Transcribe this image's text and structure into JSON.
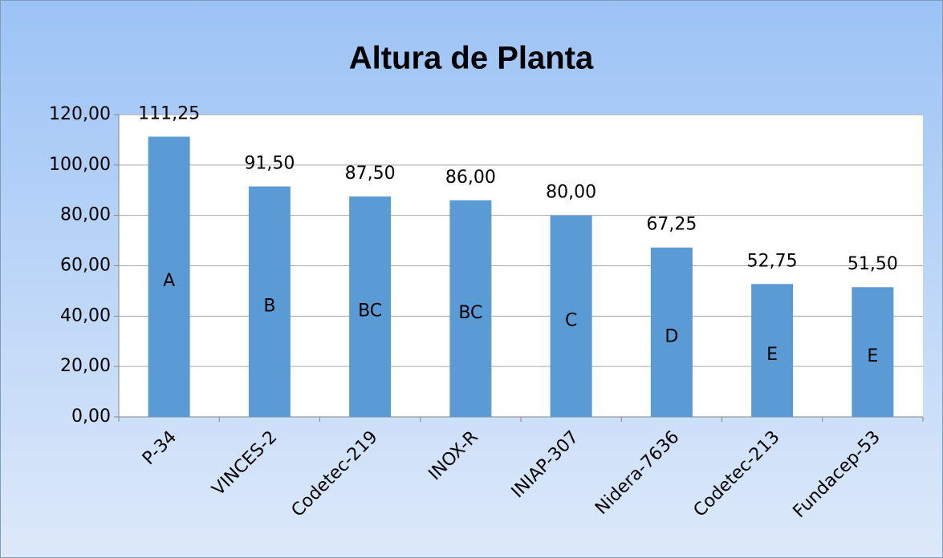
{
  "chart_data": {
    "type": "bar",
    "title": "Altura de Planta",
    "categories": [
      "P-34",
      "VINCES-2",
      "Codetec-219",
      "INOX-R",
      "INIAP-307",
      "Nidera-7636",
      "Codetec-213",
      "Fundacep-53"
    ],
    "values": [
      111.25,
      91.5,
      87.5,
      86,
      80,
      67.25,
      52.75,
      51.5
    ],
    "value_labels": [
      "111,25",
      "91,50",
      "87,50",
      "86,00",
      "80,00",
      "67,25",
      "52,75",
      "51,50"
    ],
    "annotations": [
      "A",
      "B",
      "BC",
      "BC",
      "C",
      "D",
      "E",
      "E"
    ],
    "color": "#5b9bd5",
    "ylim": [
      0,
      120
    ],
    "yticks": [
      {
        "value": 0,
        "label": "0,00"
      },
      {
        "value": 20,
        "label": "20,00"
      },
      {
        "value": 40,
        "label": "40,00"
      },
      {
        "value": 60,
        "label": "60,00"
      },
      {
        "value": 80,
        "label": "80,00"
      },
      {
        "value": 100,
        "label": "100,00"
      },
      {
        "value": 120,
        "label": "120,00"
      }
    ],
    "grid": true
  }
}
